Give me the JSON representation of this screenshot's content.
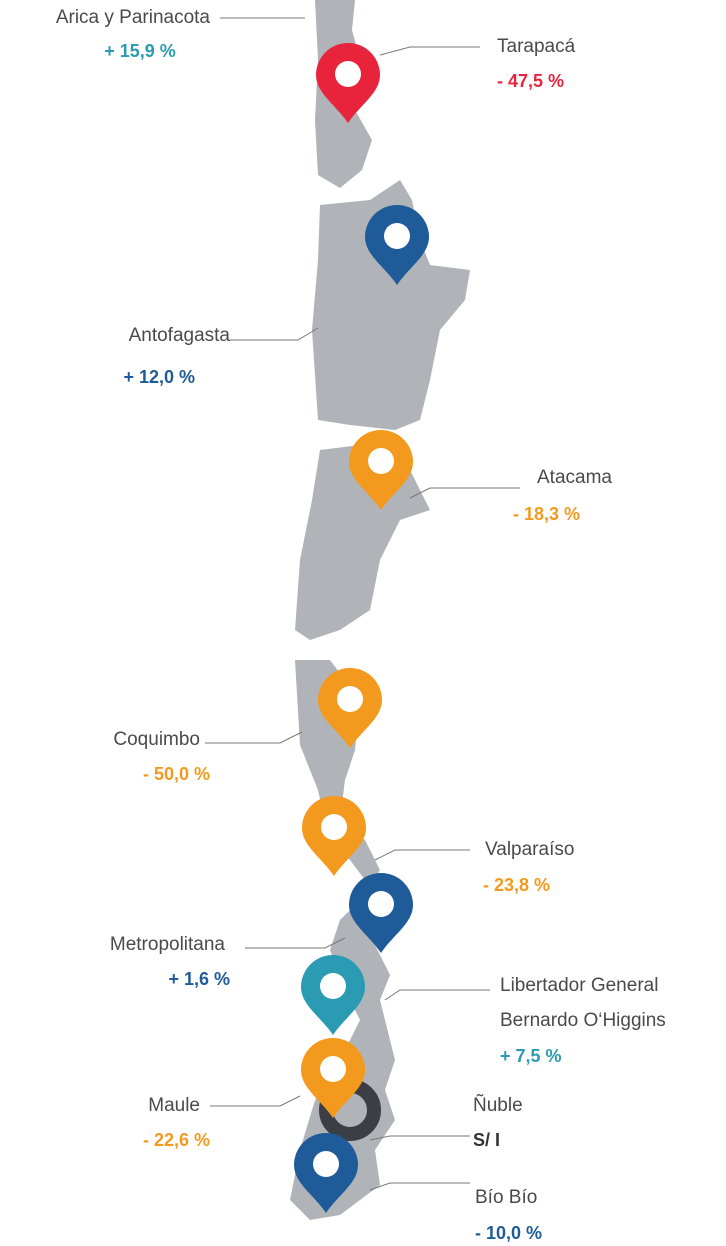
{
  "regions": [
    {
      "name": "Arica y Parinacota",
      "change": "+ 15,9  %"
    },
    {
      "name": "Tarapacá",
      "change": "- 47,5 %"
    },
    {
      "name": "Antofagasta",
      "change": "+ 12,0 %"
    },
    {
      "name": "Atacama",
      "change": "-  18,3 %"
    },
    {
      "name": "Coquimbo",
      "change": "- 50,0 %"
    },
    {
      "name": "Valparaíso",
      "change": "- 23,8 %"
    },
    {
      "name": "Metropolitana",
      "change": "+ 1,6 %"
    },
    {
      "name": [
        "Libertador General",
        "Bernardo O‘Higgins"
      ],
      "change": "+ 7,5 %"
    },
    {
      "name": "Maule",
      "change": "- 22,6 %"
    },
    {
      "name": "Ñuble",
      "change": "S/ I"
    },
    {
      "name": "Bío Bío",
      "change": "- 10,0 %"
    }
  ]
}
